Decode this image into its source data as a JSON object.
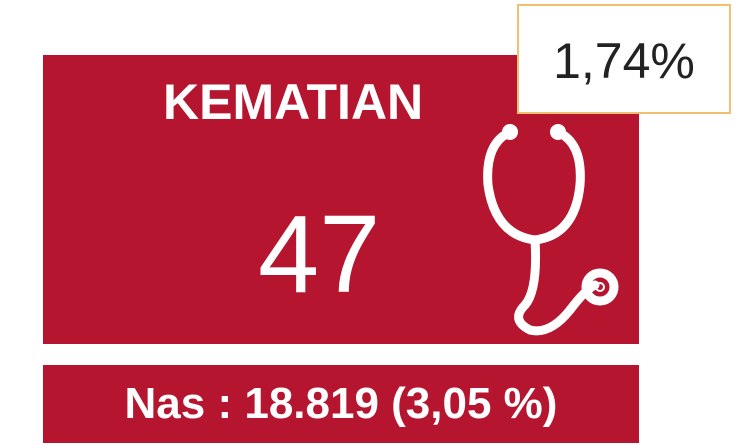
{
  "card": {
    "title": "KEMATIAN",
    "value": "47",
    "badge": "1,74%",
    "footer": "Nas : 18.819 (3,05 %)"
  }
}
